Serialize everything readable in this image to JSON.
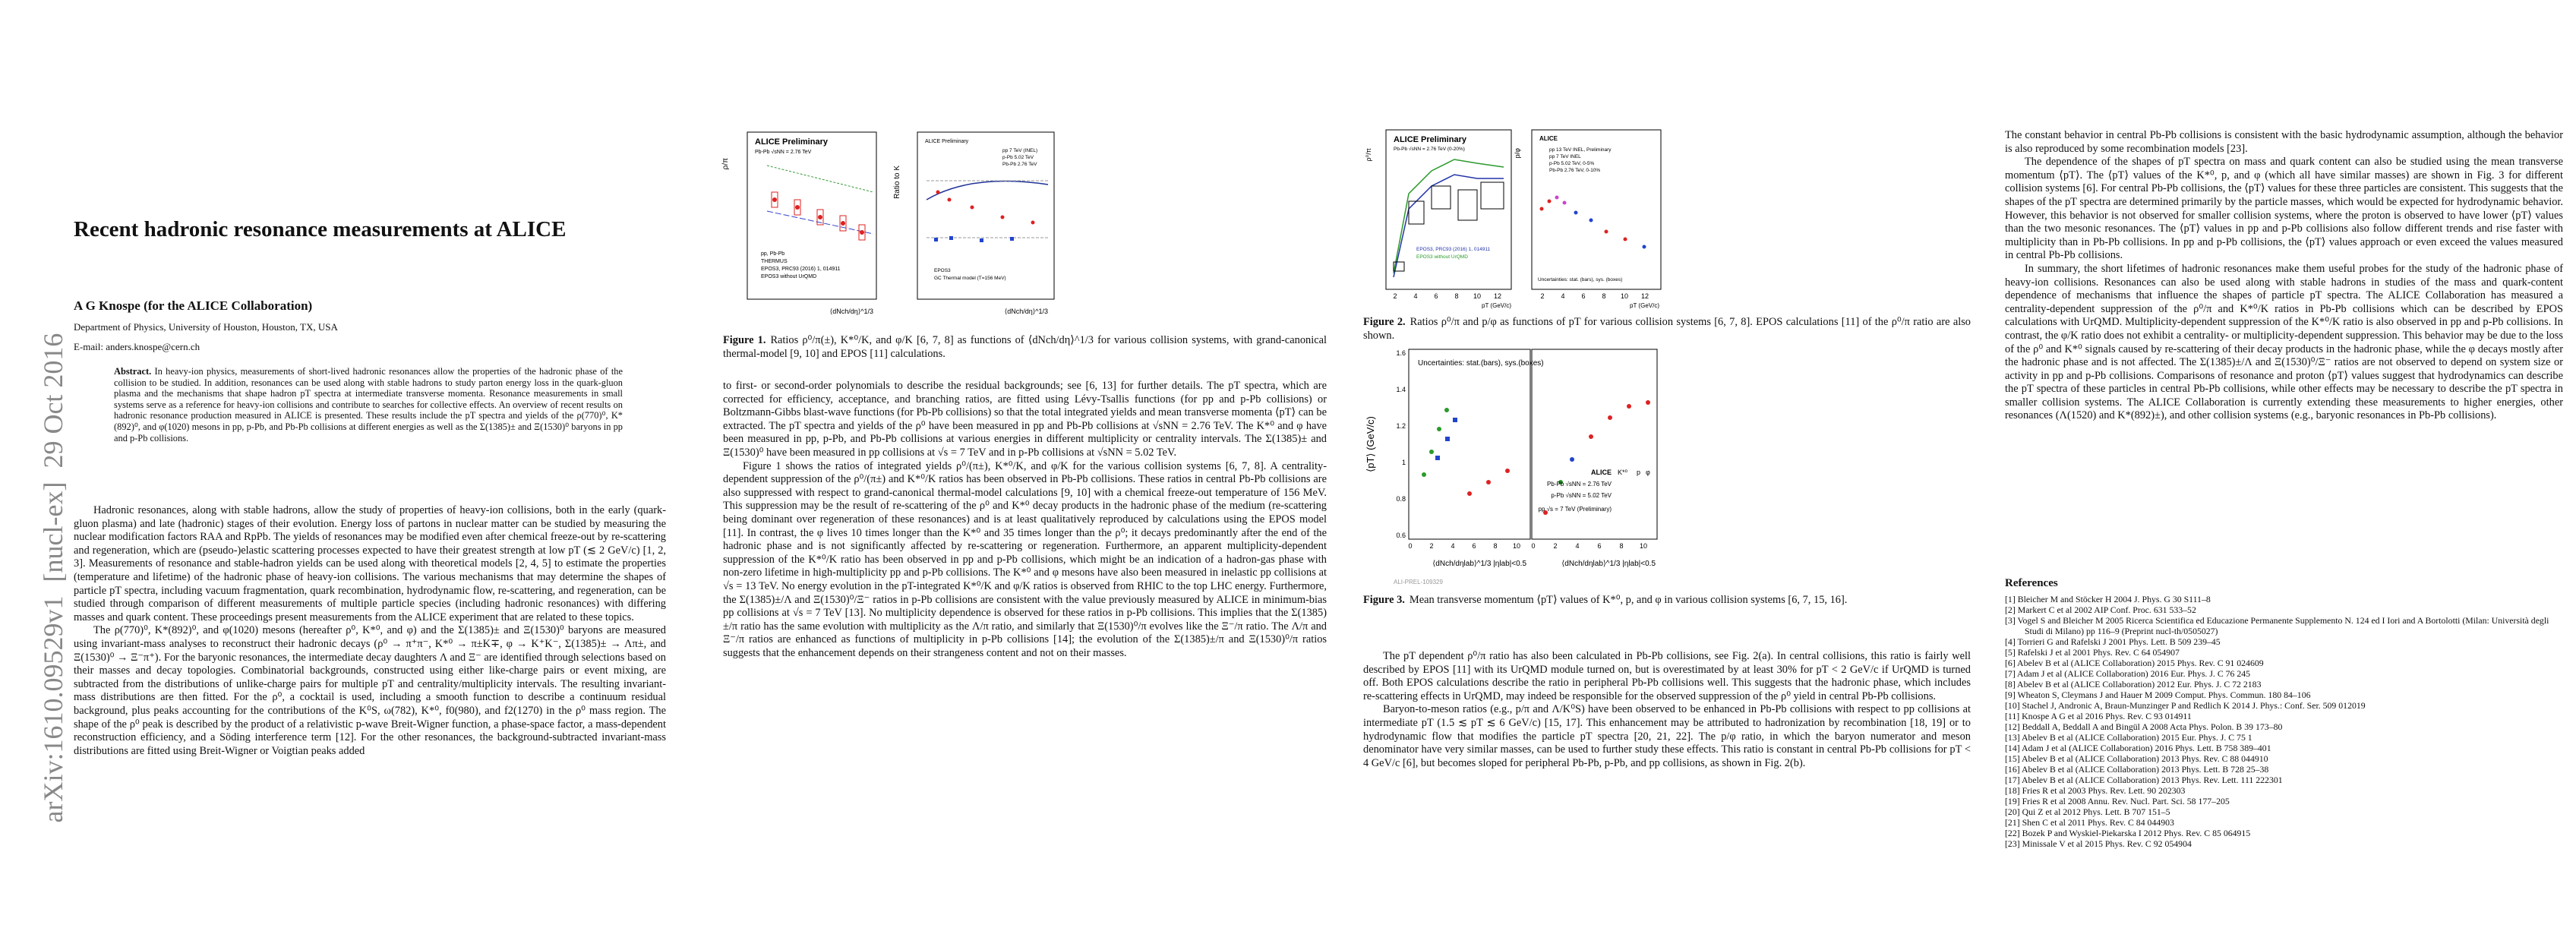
{
  "arxiv_stamp": "arXiv:1610.09529v1  [nucl-ex]  29 Oct 2016",
  "page1": {
    "title": "Recent hadronic resonance measurements at ALICE",
    "author": "A G Knospe (for the ALICE Collaboration)",
    "affiliation": "Department of Physics, University of Houston, Houston, TX, USA",
    "email": "E-mail: anders.knospe@cern.ch",
    "abstract_label": "Abstract.",
    "abstract": "In heavy-ion physics, measurements of short-lived hadronic resonances allow the properties of the hadronic phase of the collision to be studied. In addition, resonances can be used along with stable hadrons to study parton energy loss in the quark-gluon plasma and the mechanisms that shape hadron pT spectra at intermediate transverse momenta. Resonance measurements in small systems serve as a reference for heavy-ion collisions and contribute to searches for collective effects. An overview of recent results on hadronic resonance production measured in ALICE is presented. These results include the pT spectra and yields of the ρ(770)⁰, K*(892)⁰, and φ(1020) mesons in pp, p-Pb, and Pb-Pb collisions at different energies as well as the Σ(1385)± and Ξ(1530)⁰ baryons in pp and p-Pb collisions.",
    "paragraphs": [
      "Hadronic resonances, along with stable hadrons, allow the study of properties of heavy-ion collisions, both in the early (quark-gluon plasma) and late (hadronic) stages of their evolution. Energy loss of partons in nuclear matter can be studied by measuring the nuclear modification factors RAA and RpPb. The yields of resonances may be modified even after chemical freeze-out by re-scattering and regeneration, which are (pseudo-)elastic scattering processes expected to have their greatest strength at low pT (≲ 2 GeV/c) [1, 2, 3]. Measurements of resonance and stable-hadron yields can be used along with theoretical models [2, 4, 5] to estimate the properties (temperature and lifetime) of the hadronic phase of heavy-ion collisions. The various mechanisms that may determine the shapes of particle pT spectra, including vacuum fragmentation, quark recombination, hydrodynamic flow, re-scattering, and regeneration, can be studied through comparison of different measurements of multiple particle species (including hadronic resonances) with differing masses and quark content. These proceedings present measurements from the ALICE experiment that are related to these topics.",
      "The ρ(770)⁰, K*(892)⁰, and φ(1020) mesons (hereafter ρ⁰, K*⁰, and φ) and the Σ(1385)± and Ξ(1530)⁰ baryons are measured using invariant-mass analyses to reconstruct their hadronic decays (ρ⁰ → π⁺π⁻, K*⁰ → π±K∓, φ → K⁺K⁻, Σ(1385)± → Λπ±, and Ξ(1530)⁰ → Ξ⁻π⁺). For the baryonic resonances, the intermediate decay daughters Λ and Ξ⁻ are identified through selections based on their masses and decay topologies. Combinatorial backgrounds, constructed using either like-charge pairs or event mixing, are subtracted from the distributions of unlike-charge pairs for multiple pT and centrality/multiplicity intervals. The resulting invariant-mass distributions are then fitted. For the ρ⁰, a cocktail is used, including a smooth function to describe a continuum residual background, plus peaks accounting for the contributions of the K⁰S, ω(782), K*⁰, f0(980), and f2(1270) in the ρ⁰ mass region. The shape of the ρ⁰ peak is described by the product of a relativistic p-wave Breit-Wigner function, a phase-space factor, a mass-dependent reconstruction efficiency, and a Söding interference term [12]. For the other resonances, the background-subtracted invariant-mass distributions are fitted using Breit-Wigner or Voigtian peaks added"
    ]
  },
  "page2": {
    "figure1": {
      "left_title": "ALICE Preliminary",
      "left_system": "Pb-Pb √sNN = 2.76 TeV",
      "left_ylabel": "ρ/π",
      "legend_pp_pbpb": "pp, Pb-Pb",
      "legend_thermus": "THERMUS",
      "legend_epos": "EPOS3, PRC93 (2016) 1, 014911",
      "legend_epos_no_urqmd": "EPOS3 without UrQMD",
      "left_xlabel": "⟨dNch/dη⟩^1/3",
      "right_title": "ALICE Preliminary",
      "right_ylabel": "Ratio to K",
      "right_legend_pp": "pp 7 TeV (INEL)",
      "right_legend_ppb": "p-Pb 5.02 TeV",
      "right_legend_pbpb": "Pb-Pb 2.76 TeV",
      "right_legend_epos": "EPOS3",
      "right_legend_gc": "GC Thermal model (T=156 MeV)",
      "right_xlabel": "⟨dNch/dη⟩^1/3"
    },
    "caption": {
      "label": "Figure 1.",
      "text": "Ratios ρ⁰/π(±), K*⁰/K, and φ/K [6, 7, 8] as functions of ⟨dNch/dη⟩^1/3 for various collision systems, with grand-canonical thermal-model [9, 10] and EPOS [11] calculations."
    },
    "paragraphs": [
      "to first- or second-order polynomials to describe the residual backgrounds; see [6, 13] for further details. The pT spectra, which are corrected for efficiency, acceptance, and branching ratios, are fitted using Lévy-Tsallis functions (for pp and p-Pb collisions) or Boltzmann-Gibbs blast-wave functions (for Pb-Pb collisions) so that the total integrated yields and mean transverse momenta ⟨pT⟩ can be extracted. The pT spectra and yields of the ρ⁰ have been measured in pp and Pb-Pb collisions at √sNN = 2.76 TeV. The K*⁰ and φ have been measured in pp, p-Pb, and Pb-Pb collisions at various energies in different multiplicity or centrality intervals. The Σ(1385)± and Ξ(1530)⁰ have been measured in pp collisions at √s = 7 TeV and in p-Pb collisions at √sNN = 5.02 TeV.",
      "Figure 1 shows the ratios of integrated yields ρ⁰/(π±), K*⁰/K, and φ/K for the various collision systems [6, 7, 8]. A centrality-dependent suppression of the ρ⁰/(π±) and K*⁰/K ratios has been observed in Pb-Pb collisions. These ratios in central Pb-Pb collisions are also suppressed with respect to grand-canonical thermal-model calculations [9, 10] with a chemical freeze-out temperature of 156 MeV. This suppression may be the result of re-scattering of the ρ⁰ and K*⁰ decay products in the hadronic phase of the medium (re-scattering being dominant over regeneration of these resonances) and is at least qualitatively reproduced by calculations using the EPOS model [11]. In contrast, the φ lives 10 times longer than the K*⁰ and 35 times longer than the ρ⁰; it decays predominantly after the end of the hadronic phase and is not significantly affected by re-scattering or regeneration. Furthermore, an apparent multiplicity-dependent suppression of the K*⁰/K ratio has been observed in pp and p-Pb collisions, which might be an indication of a hadron-gas phase with non-zero lifetime in high-multiplicity pp and p-Pb collisions. The K*⁰ and φ mesons have also been measured in inelastic pp collisions at √s = 13 TeV. No energy evolution in the pT-integrated K*⁰/K and φ/K ratios is observed from RHIC to the top LHC energy. Furthermore, the Σ(1385)±/Λ and Ξ(1530)⁰/Ξ⁻ ratios in p-Pb collisions are consistent with the value previously measured by ALICE in minimum-bias pp collisions at √s = 7 TeV [13]. No multiplicity dependence is observed for these ratios in p-Pb collisions. This implies that the Σ(1385)±/π ratio has the same evolution with multiplicity as the Λ/π ratio, and similarly that Ξ(1530)⁰/π evolves like the Ξ⁻/π ratio. The Λ/π and Ξ⁻/π ratios are enhanced as functions of multiplicity in p-Pb collisions [14]; the evolution of the Σ(1385)±/π and Ξ(1530)⁰/π ratios suggests that the enhancement depends on their strangeness content and not on their masses."
    ]
  },
  "page3": {
    "figure2": {
      "left_title": "ALICE Preliminary",
      "left_system": "Pb-Pb √sNN = 2.76 TeV (0-20%)",
      "left_ylabel": "ρ⁰/π",
      "left_epos": "EPOS3, PRC93 (2016) 1, 014911",
      "left_epos_no_urqmd": "EPOS3 without UrQMD",
      "left_xlabel": "pT (GeV/c)",
      "right_title": "ALICE",
      "right_ylabel": "p/φ",
      "right_legend_pp13": "pp 13 TeV INEL, Preliminary",
      "right_legend_pp7": "pp 7 TeV INEL",
      "right_legend_ppb": "p-Pb 5.02 TeV, 0-5%",
      "right_legend_pbpb": "Pb-Pb 2.76 TeV, 0-10%",
      "right_uncert": "Uncertainties: stat. (bars), sys. (boxes)",
      "right_xlabel": "pT (GeV/c)",
      "xticks": [
        "2",
        "4",
        "6",
        "8",
        "10",
        "12"
      ]
    },
    "caption2": {
      "label": "Figure 2.",
      "text": "Ratios ρ⁰/π and p/φ as functions of pT for various collision systems [6, 7, 8]. EPOS calculations [11] of the ρ⁰/π ratio are also shown."
    },
    "figure3": {
      "ylabel": "⟨pT⟩ (GeV/c)",
      "uncert": "Uncertainties: stat.(bars), sys.(boxes)",
      "alice": "ALICE",
      "species": [
        "K*⁰",
        "p",
        "φ"
      ],
      "legend_pbpb": "Pb-Pb √sNN = 2.76 TeV",
      "legend_ppb": "p-Pb √sNN = 5.02 TeV",
      "legend_pp": "pp √s = 7 TeV (Preliminary)",
      "xlabel": "⟨dNch/dηlab⟩^1/3 |ηlab|<0.5",
      "yticks": [
        "0.6",
        "0.8",
        "1",
        "1.2",
        "1.4",
        "1.6"
      ],
      "xticks": [
        "0",
        "2",
        "4",
        "6",
        "8",
        "10"
      ],
      "id": "ALI-PREL-109329"
    },
    "caption3": {
      "label": "Figure 3.",
      "text": "Mean transverse momentum ⟨pT⟩ values of K*⁰, p, and φ in various collision systems [6, 7, 15, 16]."
    },
    "paragraphs": [
      "The pT dependent ρ⁰/π ratio has also been calculated in Pb-Pb collisions, see Fig. 2(a). In central collisions, this ratio is fairly well described by EPOS [11] with its UrQMD module turned on, but is overestimated by at least 30% for pT < 2 GeV/c if UrQMD is turned off. Both EPOS calculations describe the ratio in peripheral Pb-Pb collisions well. This suggests that the hadronic phase, which includes re-scattering effects in UrQMD, may indeed be responsible for the observed suppression of the ρ⁰ yield in central Pb-Pb collisions.",
      "Baryon-to-meson ratios (e.g., p/π and Λ/K⁰S) have been observed to be enhanced in Pb-Pb collisions with respect to pp collisions at intermediate pT (1.5 ≲ pT ≲ 6 GeV/c) [15, 17]. This enhancement may be attributed to hadronization by recombination [18, 19] or to hydrodynamic flow that modifies the particle pT spectra [20, 21, 22]. The p/φ ratio, in which the baryon numerator and meson denominator have very similar masses, can be used to further study these effects. This ratio is constant in central Pb-Pb collisions for pT < 4 GeV/c [6], but becomes sloped for peripheral Pb-Pb, p-Pb, and pp collisions, as shown in Fig. 2(b)."
    ]
  },
  "page4": {
    "paragraphs": [
      "The constant behavior in central Pb-Pb collisions is consistent with the basic hydrodynamic assumption, although the behavior is also reproduced by some recombination models [23].",
      "The dependence of the shapes of pT spectra on mass and quark content can also be studied using the mean transverse momentum ⟨pT⟩. The ⟨pT⟩ values of the K*⁰, p, and φ (which all have similar masses) are shown in Fig. 3 for different collision systems [6]. For central Pb-Pb collisions, the ⟨pT⟩ values for these three particles are consistent. This suggests that the shapes of the pT spectra are determined primarily by the particle masses, which would be expected for hydrodynamic behavior. However, this behavior is not observed for smaller collision systems, where the proton is observed to have lower ⟨pT⟩ values than the two mesonic resonances. The ⟨pT⟩ values in pp and p-Pb collisions also follow different trends and rise faster with multiplicity than in Pb-Pb collisions. In pp and p-Pb collisions, the ⟨pT⟩ values approach or even exceed the values measured in central Pb-Pb collisions.",
      "In summary, the short lifetimes of hadronic resonances make them useful probes for the study of the hadronic phase of heavy-ion collisions. Resonances can also be used along with stable hadrons in studies of the mass and quark-content dependence of mechanisms that influence the shapes of particle pT spectra. The ALICE Collaboration has measured a centrality-dependent suppression of the ρ⁰/π and K*⁰/K ratios in Pb-Pb collisions which can be described by EPOS calculations with UrQMD. Multiplicity-dependent suppression of the K*⁰/K ratio is also observed in pp and p-Pb collisions. In contrast, the φ/K ratio does not exhibit a centrality- or multiplicity-dependent suppression. This behavior may be due to the loss of the ρ⁰ and K*⁰ signals caused by re-scattering of their decay products in the hadronic phase, while the φ decays mostly after the hadronic phase and is not affected. The Σ(1385)±/Λ and Ξ(1530)⁰/Ξ⁻ ratios are not observed to depend on system size or activity in pp and p-Pb collisions. Comparisons of resonance and proton ⟨pT⟩ values suggest that hydrodynamics can describe the pT spectra of these particles in central Pb-Pb collisions, while other effects may be necessary to describe the pT spectra in smaller collision systems. The ALICE Collaboration is currently extending these measurements to higher energies, other resonances (Λ(1520) and K*(892)±), and other collision systems (e.g., baryonic resonances in Pb-Pb collisions)."
    ],
    "references_heading": "References",
    "references": [
      "[1] Bleicher M and Stöcker H 2004 J. Phys. G 30 S111–8",
      "[2] Markert C et al 2002 AIP Conf. Proc. 631 533–52",
      "[3] Vogel S and Bleicher M 2005 Ricerca Scientifica ed Educazione Permanente Supplemento N. 124 ed I Iori and A Bortolotti (Milan: Università degli Studi di Milano) pp 116–9 (Preprint nucl-th/0505027)",
      "[4] Torrieri G and Rafelski J 2001 Phys. Lett. B 509 239–45",
      "[5] Rafelski J et al 2001 Phys. Rev. C 64 054907",
      "[6] Abelev B et al (ALICE Collaboration) 2015 Phys. Rev. C 91 024609",
      "[7] Adam J et al (ALICE Collaboration) 2016 Eur. Phys. J. C 76 245",
      "[8] Abelev B et al (ALICE Collaboration) 2012 Eur. Phys. J. C 72 2183",
      "[9] Wheaton S, Cleymans J and Hauer M 2009 Comput. Phys. Commun. 180 84–106",
      "[10] Stachel J, Andronic A, Braun-Munzinger P and Redlich K 2014 J. Phys.: Conf. Ser. 509 012019",
      "[11] Knospe A G et al 2016 Phys. Rev. C 93 014911",
      "[12] Beddall A, Beddall A and Bingül A 2008 Acta Phys. Polon. B 39 173–80",
      "[13] Abelev B et al (ALICE Collaboration) 2015 Eur. Phys. J. C 75 1",
      "[14] Adam J et al (ALICE Collaboration) 2016 Phys. Lett. B 758 389–401",
      "[15] Abelev B et al (ALICE Collaboration) 2013 Phys. Rev. C 88 044910",
      "[16] Abelev B et al (ALICE Collaboration) 2013 Phys. Lett. B 728 25–38",
      "[17] Abelev B et al (ALICE Collaboration) 2013 Phys. Rev. Lett. 111 222301",
      "[18] Fries R et al 2003 Phys. Rev. Lett. 90 202303",
      "[19] Fries R et al 2008 Annu. Rev. Nucl. Part. Sci. 58 177–205",
      "[20] Qui Z et al 2012 Phys. Lett. B 707 151–5",
      "[21] Shen C et al 2011 Phys. Rev. C 84 044903",
      "[22] Bozek P and Wyskiel-Piekarska I 2012 Phys. Rev. C 85 064915",
      "[23] Minissale V et al 2015 Phys. Rev. C 92 054904"
    ]
  }
}
